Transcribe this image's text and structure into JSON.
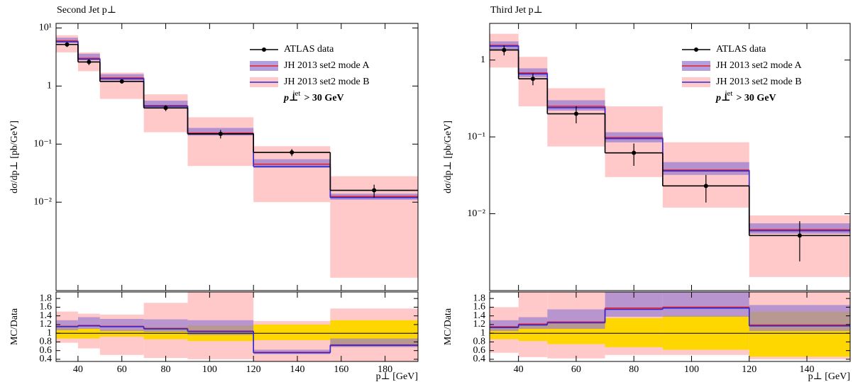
{
  "chart_data": [
    {
      "type": "histogram",
      "title": "Second Jet p⊥",
      "y_label": "dσ/dp⊥ [pb/GeV]",
      "x_label": "p⊥ [GeV]",
      "ratio_y_label": "MC/Data",
      "log_y": true,
      "legend": "upper right",
      "bins": [
        30,
        40,
        50,
        70,
        90,
        120,
        155,
        195
      ],
      "xlim": [
        30,
        195
      ],
      "xticks": [
        40,
        60,
        80,
        100,
        120,
        140,
        160,
        180
      ],
      "ylim": [
        0.0003,
        12
      ],
      "yticks": [
        {
          "value": 10,
          "label": "10¹"
        },
        1,
        {
          "value": 0.1,
          "label": "10⁻¹"
        },
        {
          "value": 0.01,
          "label": "10⁻²"
        }
      ],
      "annotation": {
        "symbol": "p⊥",
        "superscript": "jet",
        "text": "> 30 GeV"
      },
      "series": [
        {
          "name": "ATLAS data",
          "color": "#000000",
          "x": [
            35,
            45,
            60,
            80,
            105,
            137.5,
            175
          ],
          "values": [
            5.2,
            2.6,
            1.2,
            0.42,
            0.15,
            0.072,
            0.016
          ],
          "errors": [
            0.5,
            0.3,
            0.1,
            0.05,
            0.025,
            0.01,
            0.004
          ]
        },
        {
          "name": "JH 2013 set2 mode A",
          "color": "#e3202c",
          "band_color": "#9a7fd0",
          "values": [
            6.0,
            3.0,
            1.38,
            0.46,
            0.155,
            0.045,
            0.0125
          ],
          "band_low": [
            5.5,
            2.8,
            1.25,
            0.43,
            0.14,
            0.039,
            0.011
          ],
          "band_high": [
            6.8,
            3.6,
            1.6,
            0.56,
            0.19,
            0.055,
            0.014
          ]
        },
        {
          "name": "JH 2013 set2 mode B",
          "color": "#2b2bd6",
          "band_color": "#ffc9c9",
          "values": [
            5.8,
            2.9,
            1.33,
            0.45,
            0.15,
            0.041,
            0.012
          ],
          "band_low": [
            3.8,
            1.8,
            0.6,
            0.16,
            0.042,
            0.01,
            0.0005
          ],
          "band_high": [
            7.5,
            3.8,
            1.7,
            0.72,
            0.29,
            0.092,
            0.028
          ]
        }
      ],
      "ratio": {
        "ylim": [
          0.35,
          1.95
        ],
        "yticks": [
          0.4,
          0.6,
          0.8,
          1,
          1.2,
          1.4,
          1.6,
          1.8
        ],
        "reference": 1,
        "data_band_color": "#ffd700",
        "data_band_low": [
          0.88,
          0.88,
          0.92,
          0.86,
          0.82,
          0.84,
          0.7
        ],
        "data_band_high": [
          1.12,
          1.12,
          1.08,
          1.14,
          1.18,
          1.2,
          1.3
        ],
        "series": [
          {
            "values": [
              1.16,
              1.18,
              1.16,
              1.11,
              1.05,
              0.56,
              0.73
            ],
            "band_low": [
              1.07,
              1.1,
              1.05,
              1.03,
              0.96,
              0.52,
              0.68
            ],
            "band_high": [
              1.3,
              1.37,
              1.33,
              1.32,
              1.3,
              0.62,
              0.88
            ]
          },
          {
            "values": [
              1.15,
              1.17,
              1.15,
              1.1,
              1.04,
              0.55,
              0.72
            ],
            "band_low": [
              0.78,
              0.65,
              0.5,
              0.43,
              0.4,
              0.35,
              0.35
            ],
            "band_high": [
              1.5,
              1.45,
              1.43,
              1.7,
              1.95,
              1.28,
              1.57
            ]
          }
        ]
      }
    },
    {
      "type": "histogram",
      "title": "Third Jet p⊥",
      "y_label": "dσ/dp⊥ [pb/GeV]",
      "x_label": "p⊥ [GeV]",
      "ratio_y_label": "MC/Data",
      "log_y": true,
      "legend": "upper right",
      "bins": [
        30,
        40,
        50,
        70,
        90,
        120,
        155
      ],
      "xlim": [
        30,
        155
      ],
      "xticks": [
        40,
        60,
        80,
        100,
        120,
        140
      ],
      "ylim": [
        0.001,
        3
      ],
      "yticks": [
        1,
        {
          "value": 0.1,
          "label": "10⁻¹"
        },
        {
          "value": 0.01,
          "label": "10⁻²"
        }
      ],
      "annotation": {
        "symbol": "p⊥",
        "superscript": "jet",
        "text": "> 30 GeV"
      },
      "series": [
        {
          "name": "ATLAS data",
          "color": "#000000",
          "x": [
            35,
            45,
            60,
            80,
            105,
            137.5
          ],
          "values": [
            1.35,
            0.57,
            0.2,
            0.062,
            0.023,
            0.0052
          ],
          "errors": [
            0.2,
            0.1,
            0.05,
            0.02,
            0.009,
            0.0028
          ]
        },
        {
          "name": "JH 2013 set2 mode A",
          "color": "#e3202c",
          "band_color": "#9a7fd0",
          "values": [
            1.55,
            0.68,
            0.25,
            0.098,
            0.037,
            0.0062
          ],
          "band_low": [
            1.35,
            0.6,
            0.22,
            0.085,
            0.032,
            0.0055
          ],
          "band_high": [
            1.75,
            0.78,
            0.3,
            0.115,
            0.047,
            0.0075
          ]
        },
        {
          "name": "JH 2013 set2 mode B",
          "color": "#2b2bd6",
          "band_color": "#ffc9c9",
          "values": [
            1.52,
            0.66,
            0.24,
            0.095,
            0.036,
            0.006
          ],
          "band_low": [
            0.8,
            0.25,
            0.075,
            0.03,
            0.012,
            0.0015
          ],
          "band_high": [
            2.2,
            1.1,
            0.43,
            0.25,
            0.085,
            0.0095
          ]
        }
      ],
      "ratio": {
        "ylim": [
          0.35,
          1.95
        ],
        "yticks": [
          0.4,
          0.6,
          0.8,
          1,
          1.2,
          1.4,
          1.6,
          1.8
        ],
        "reference": 1,
        "data_band_color": "#ffd700",
        "data_band_low": [
          0.86,
          0.82,
          0.75,
          0.68,
          0.62,
          0.46
        ],
        "data_band_high": [
          1.14,
          1.18,
          1.25,
          1.35,
          1.4,
          1.5
        ],
        "series": [
          {
            "values": [
              1.15,
              1.21,
              1.26,
              1.58,
              1.6,
              1.19
            ],
            "band_low": [
              1.05,
              1.1,
              1.1,
              1.38,
              1.38,
              1.05
            ],
            "band_high": [
              1.3,
              1.37,
              1.55,
              1.95,
              1.95,
              1.65
            ]
          },
          {
            "values": [
              1.13,
              1.19,
              1.24,
              1.55,
              1.58,
              1.17
            ],
            "band_low": [
              0.55,
              0.45,
              0.42,
              0.5,
              0.5,
              0.4
            ],
            "band_high": [
              1.6,
              1.95,
              1.95,
              1.95,
              1.95,
              1.95
            ]
          }
        ]
      }
    }
  ]
}
